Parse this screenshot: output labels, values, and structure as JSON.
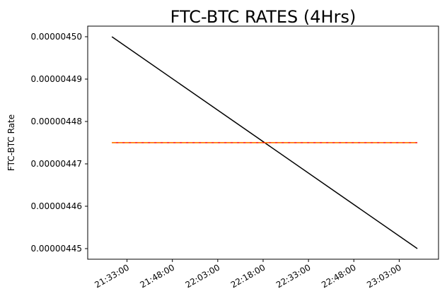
{
  "chart_data": {
    "type": "line",
    "title": "FTC-BTC RATES (4Hrs)",
    "xlabel": "",
    "ylabel": "FTC-BTC Rate",
    "x_ticks": [
      "21:33:00",
      "21:48:00",
      "22:03:00",
      "22:18:00",
      "22:33:00",
      "22:48:00",
      "23:03:00"
    ],
    "y_ticks": [
      "0.00000445",
      "0.00000446",
      "0.00000447",
      "0.00000448",
      "0.00000449",
      "0.00000450"
    ],
    "xlim": [
      "21:20:00",
      "23:16:00"
    ],
    "ylim": [
      4.4475e-06,
      4.5025e-06
    ],
    "grid": false,
    "series": [
      {
        "color": "#000000",
        "style": "solid",
        "x": [
          "21:28:00",
          "23:09:00"
        ],
        "values": [
          4.5e-06,
          4.45e-06
        ]
      },
      {
        "color": "#ff0000",
        "style": "solid",
        "x": [
          "21:28:00",
          "23:09:00"
        ],
        "values": [
          4.475e-06,
          4.475e-06
        ]
      },
      {
        "color": "#ff8c00",
        "style": "dashed",
        "x": [
          "21:28:00",
          "23:09:00"
        ],
        "values": [
          4.475e-06,
          4.475e-06
        ]
      }
    ]
  }
}
